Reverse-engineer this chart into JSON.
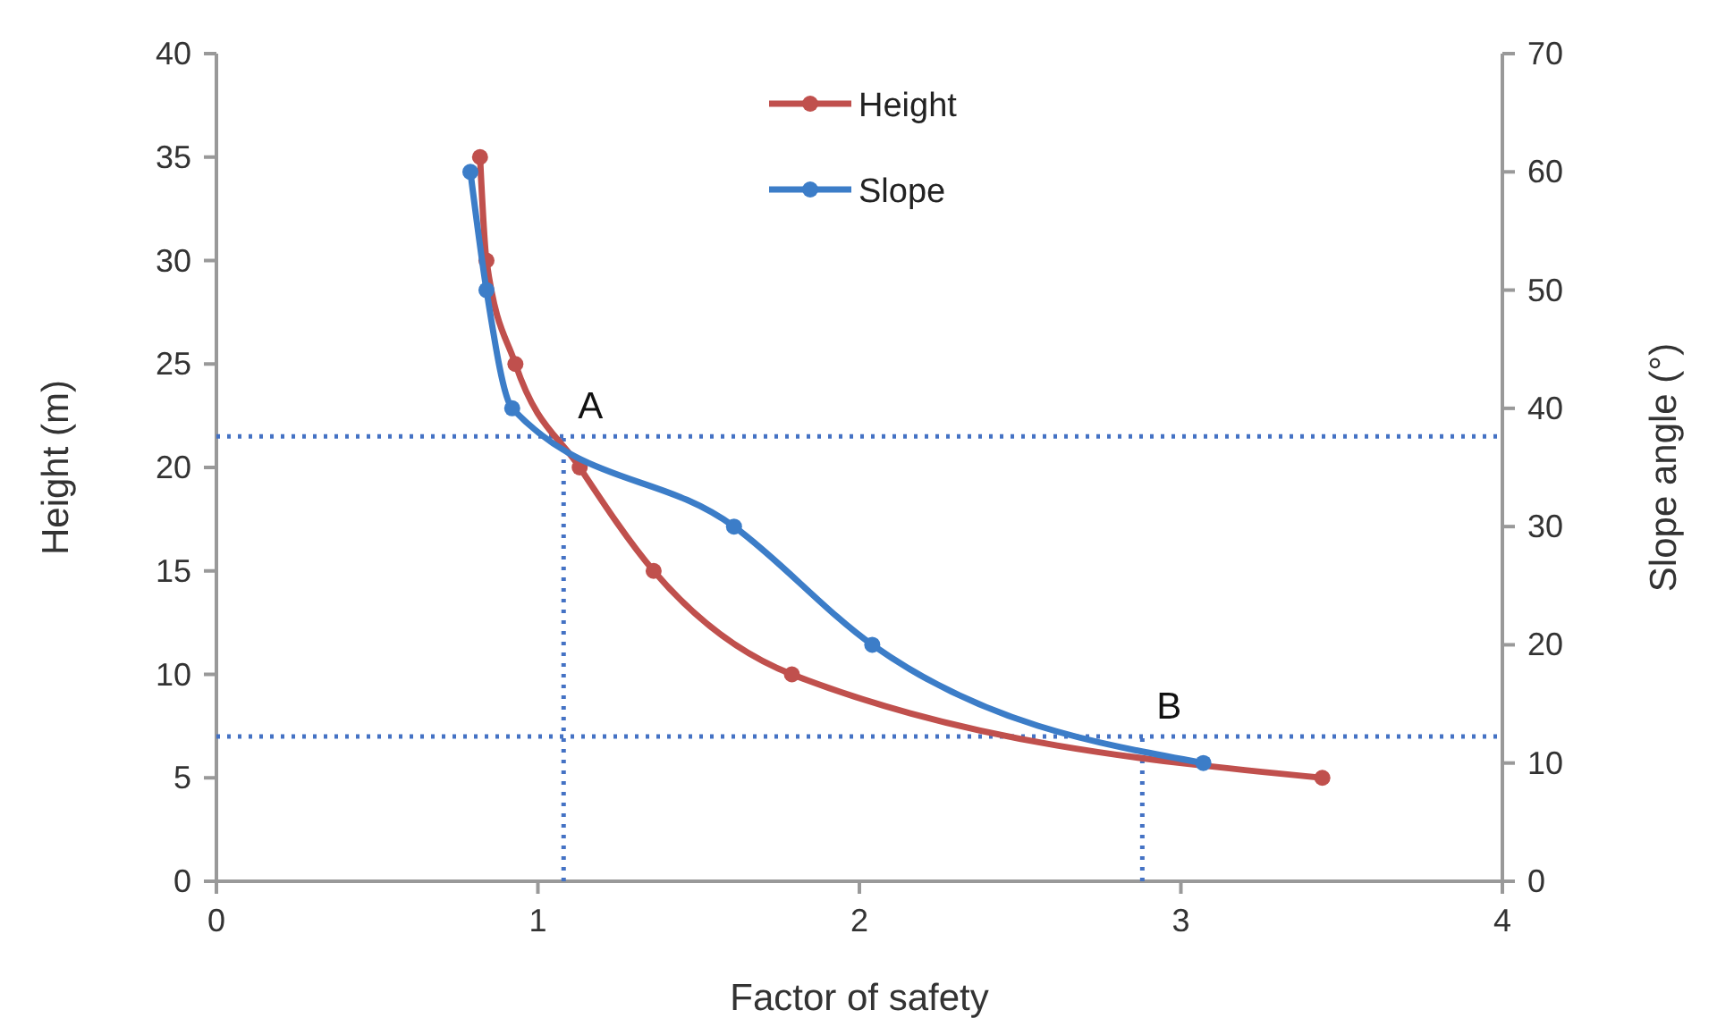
{
  "chart_data": {
    "type": "line",
    "xlabel": "Factor of safety",
    "ylabel": "Height  (m)",
    "y2label": "Slope angle (°)",
    "xlim": [
      0,
      4
    ],
    "xticks": [
      0,
      1,
      2,
      3,
      4
    ],
    "ylim": [
      0,
      40
    ],
    "yticks": [
      0,
      5,
      10,
      15,
      20,
      25,
      30,
      35,
      40
    ],
    "y2lim": [
      0,
      70
    ],
    "y2ticks": [
      0,
      10,
      20,
      30,
      40,
      50,
      60,
      70
    ],
    "grid": false,
    "legend": "top",
    "marker": "circle",
    "line_style": "solid",
    "series": [
      {
        "name": "Height",
        "color": "#c0504d",
        "x": [
          0.82,
          0.84,
          0.93,
          1.13,
          1.36,
          1.79,
          3.44
        ],
        "values": [
          35,
          30,
          25,
          20,
          15,
          10,
          5
        ]
      },
      {
        "name": "Slope",
        "color": "#3c7dc8",
        "axis": "y2",
        "x": [
          0.79,
          0.84,
          0.92,
          1.61,
          2.04,
          3.07
        ],
        "values": [
          60,
          50,
          40,
          30,
          20,
          10
        ]
      }
    ],
    "ref_lines": [
      {
        "axis": "y",
        "value": 21.5,
        "color": "#4472c4",
        "line_style": "dotted"
      },
      {
        "axis": "x",
        "value": 1.08,
        "color": "#4472c4",
        "line_style": "dotted"
      },
      {
        "axis": "y",
        "value": 7,
        "color": "#4472c4",
        "line_style": "dotted"
      },
      {
        "axis": "x",
        "value": 2.88,
        "color": "#4472c4",
        "line_style": "dotted"
      }
    ],
    "annotations": [
      {
        "text": "A",
        "x": 1.08,
        "y": 21.5
      },
      {
        "text": "B",
        "x": 2.88,
        "y": 7
      }
    ]
  }
}
